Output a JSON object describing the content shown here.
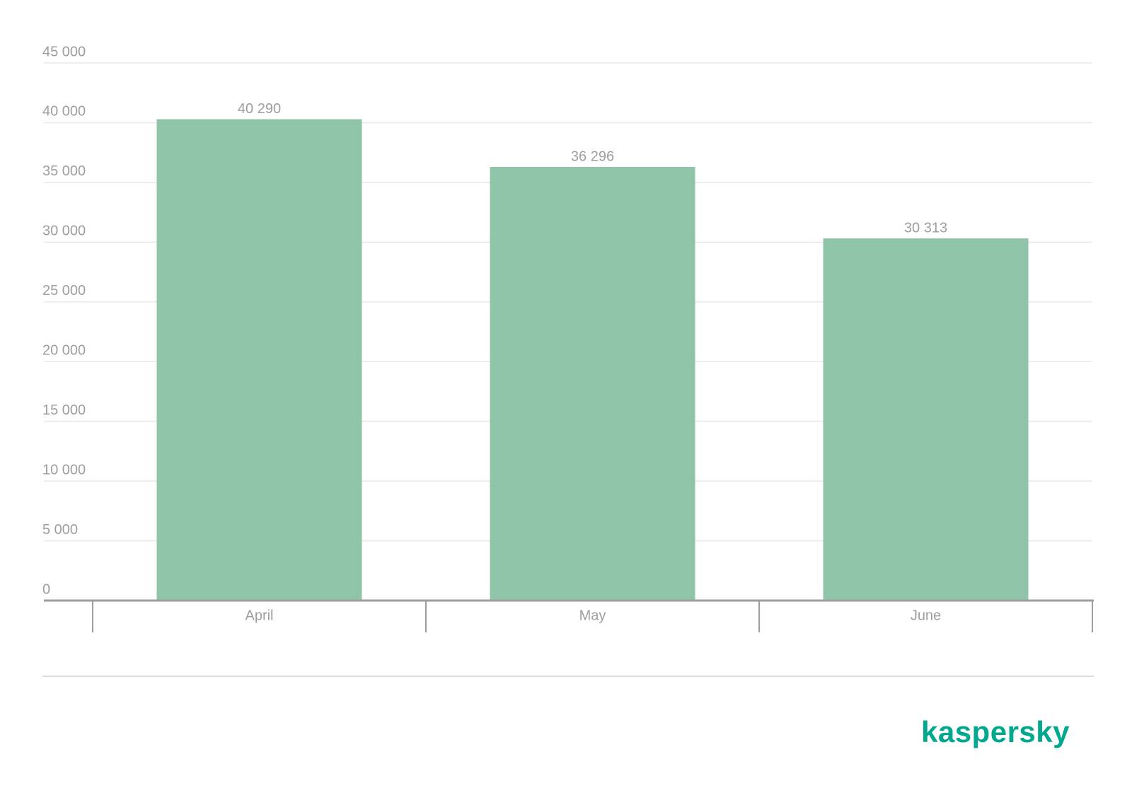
{
  "chart_data": {
    "type": "bar",
    "categories": [
      "April",
      "May",
      "June"
    ],
    "values": [
      40290,
      36296,
      30313
    ],
    "value_labels": [
      "40 290",
      "36 296",
      "30 313"
    ],
    "color": "#90c4a8",
    "ylim": [
      0,
      45000
    ],
    "yticks": [
      0,
      {
        "value": 5000,
        "label": "5 000"
      },
      {
        "value": 10000,
        "label": "10 000"
      },
      {
        "value": 15000,
        "label": "15 000"
      },
      {
        "value": 20000,
        "label": "20 000"
      },
      {
        "value": 25000,
        "label": "25 000"
      },
      {
        "value": 30000,
        "label": "30 000"
      },
      {
        "value": 35000,
        "label": "35 000"
      },
      {
        "value": 40000,
        "label": "40 000"
      },
      {
        "value": 45000,
        "label": "45 000"
      }
    ],
    "grid": true
  },
  "brand": "kaspersky"
}
